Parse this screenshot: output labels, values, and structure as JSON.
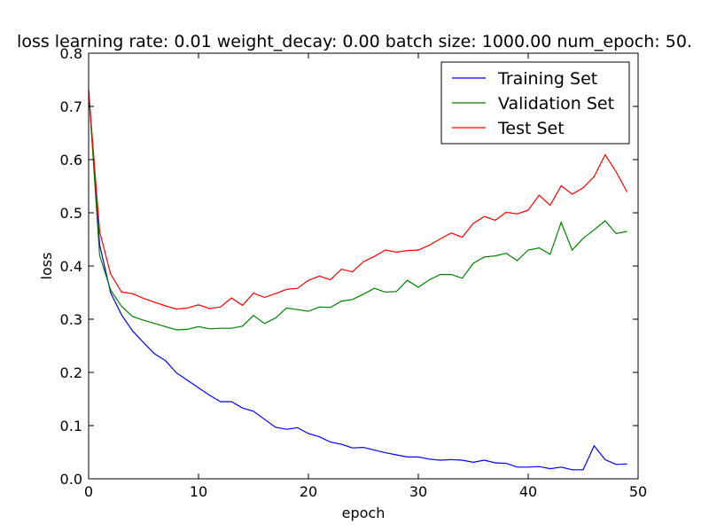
{
  "chart_data": {
    "type": "line",
    "title": "loss learning rate: 0.01 weight_decay: 0.00 batch size: 1000.00 num_epoch: 50.",
    "xlabel": "epoch",
    "ylabel": "loss",
    "xlim": [
      0,
      50
    ],
    "ylim": [
      0,
      0.8
    ],
    "xticks": [
      "0",
      "10",
      "20",
      "30",
      "40",
      "50"
    ],
    "yticks": [
      "0.0",
      "0.1",
      "0.2",
      "0.3",
      "0.4",
      "0.5",
      "0.6",
      "0.7",
      "0.8"
    ],
    "grid": false,
    "legend_position": "top-right",
    "x": [
      0,
      1,
      2,
      3,
      4,
      5,
      6,
      7,
      8,
      9,
      10,
      11,
      12,
      13,
      14,
      15,
      16,
      17,
      18,
      19,
      20,
      21,
      22,
      23,
      24,
      25,
      26,
      27,
      28,
      29,
      30,
      31,
      32,
      33,
      34,
      35,
      36,
      37,
      38,
      39,
      40,
      41,
      42,
      43,
      44,
      45,
      46,
      47,
      48,
      49
    ],
    "series": [
      {
        "name": "Training Set",
        "color": "#0000ff",
        "values": [
          0.73,
          0.44,
          0.35,
          0.308,
          0.278,
          0.256,
          0.235,
          0.222,
          0.199,
          0.185,
          0.171,
          0.157,
          0.145,
          0.145,
          0.133,
          0.127,
          0.112,
          0.097,
          0.093,
          0.096,
          0.085,
          0.079,
          0.069,
          0.065,
          0.058,
          0.059,
          0.054,
          0.049,
          0.045,
          0.041,
          0.041,
          0.037,
          0.035,
          0.036,
          0.035,
          0.031,
          0.035,
          0.03,
          0.029,
          0.022,
          0.022,
          0.023,
          0.019,
          0.022,
          0.017,
          0.017,
          0.062,
          0.036,
          0.027,
          0.028
        ]
      },
      {
        "name": "Validation Set",
        "color": "#008000",
        "values": [
          0.73,
          0.42,
          0.355,
          0.324,
          0.305,
          0.298,
          0.292,
          0.286,
          0.28,
          0.281,
          0.286,
          0.282,
          0.283,
          0.283,
          0.287,
          0.307,
          0.292,
          0.302,
          0.321,
          0.318,
          0.315,
          0.323,
          0.322,
          0.334,
          0.337,
          0.347,
          0.358,
          0.351,
          0.352,
          0.373,
          0.36,
          0.374,
          0.384,
          0.384,
          0.377,
          0.405,
          0.417,
          0.419,
          0.424,
          0.41,
          0.43,
          0.434,
          0.422,
          0.482,
          0.43,
          0.452,
          0.468,
          0.485,
          0.461,
          0.465
        ]
      },
      {
        "name": "Test Set",
        "color": "#ff0000",
        "values": [
          0.73,
          0.465,
          0.385,
          0.351,
          0.348,
          0.339,
          0.332,
          0.325,
          0.319,
          0.321,
          0.327,
          0.32,
          0.323,
          0.34,
          0.326,
          0.349,
          0.341,
          0.348,
          0.356,
          0.358,
          0.373,
          0.381,
          0.374,
          0.394,
          0.389,
          0.408,
          0.418,
          0.43,
          0.426,
          0.429,
          0.43,
          0.439,
          0.451,
          0.462,
          0.454,
          0.48,
          0.493,
          0.486,
          0.501,
          0.498,
          0.505,
          0.533,
          0.514,
          0.551,
          0.535,
          0.547,
          0.568,
          0.609,
          0.577,
          0.539
        ]
      }
    ]
  }
}
